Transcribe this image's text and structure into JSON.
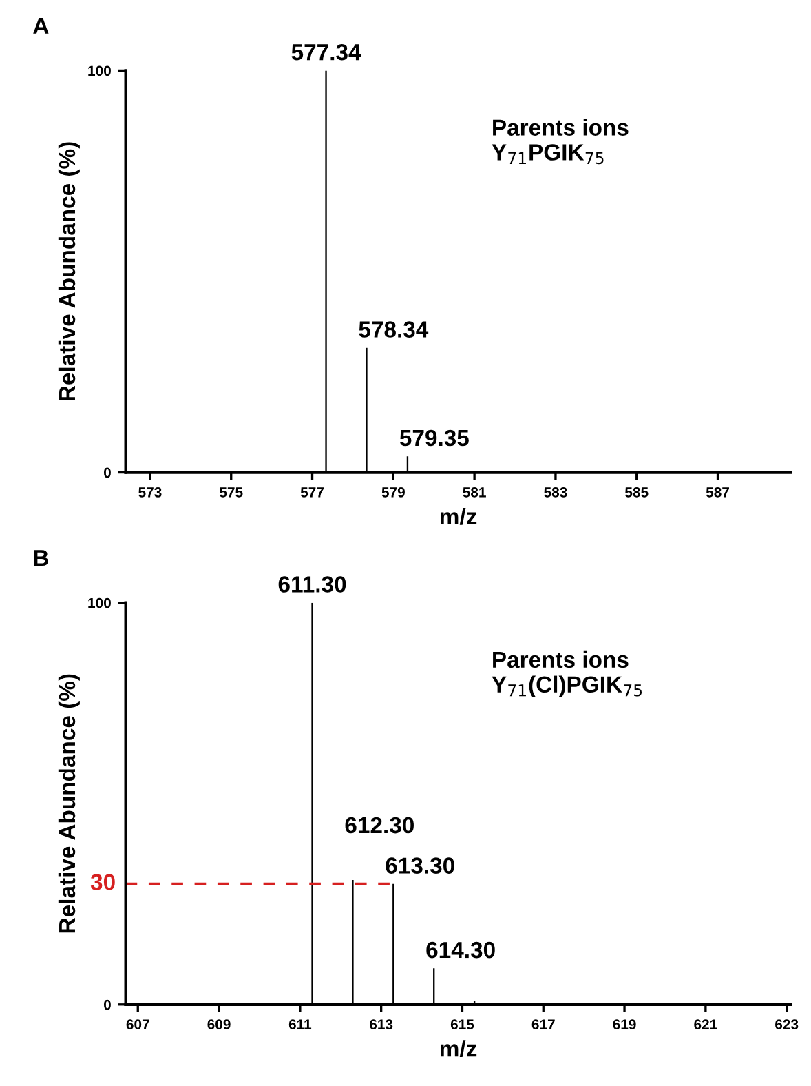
{
  "chart_data": [
    {
      "type": "bar",
      "title": "A",
      "xlabel": "m/z",
      "ylabel": "Relative Abundance (%)",
      "x": [
        577.34,
        578.34,
        579.35
      ],
      "values": [
        100,
        31,
        4
      ],
      "color": "#000000",
      "xlim": [
        572.4,
        588.8
      ],
      "ylim": [
        0,
        100
      ],
      "xticks": [
        573,
        575,
        577,
        579,
        581,
        583,
        585,
        587
      ],
      "yticks": [
        0,
        100
      ],
      "grid": false,
      "legend": false,
      "annotations": [
        {
          "text": "577.34",
          "x": 577.34,
          "y": 100
        },
        {
          "text": "578.34",
          "x": 578.34,
          "y": 31
        },
        {
          "text": "579.35",
          "x": 579.35,
          "y": 4
        },
        "Parents ions\nY$_{71}$PGIK$_{75}$"
      ]
    },
    {
      "type": "bar",
      "title": "B",
      "xlabel": "m/z",
      "ylabel": "Relative Abundance (%)",
      "x": [
        611.3,
        612.3,
        613.3,
        614.3,
        615.3
      ],
      "values": [
        100,
        31,
        30,
        9,
        1
      ],
      "color": "#000000",
      "xlim": [
        606.7,
        623.1
      ],
      "ylim": [
        0,
        100
      ],
      "xticks": [
        607,
        609,
        611,
        613,
        615,
        617,
        619,
        621,
        623
      ],
      "yticks": [
        0,
        100
      ],
      "grid": false,
      "legend": false,
      "ref_lines": [
        {
          "axis": "y",
          "value": 30,
          "label": "30",
          "color": "#d62020",
          "line_style": "dashed"
        }
      ],
      "annotations": [
        {
          "text": "611.30",
          "x": 611.3,
          "y": 100
        },
        {
          "text": "612.30",
          "x": 612.3,
          "y": 31
        },
        {
          "text": "613.30",
          "x": 613.3,
          "y": 30
        },
        {
          "text": "614.30",
          "x": 614.3,
          "y": 9
        },
        "Parents ions\nY$_{71}$(Cl)PGIK$_{75}$"
      ]
    }
  ]
}
